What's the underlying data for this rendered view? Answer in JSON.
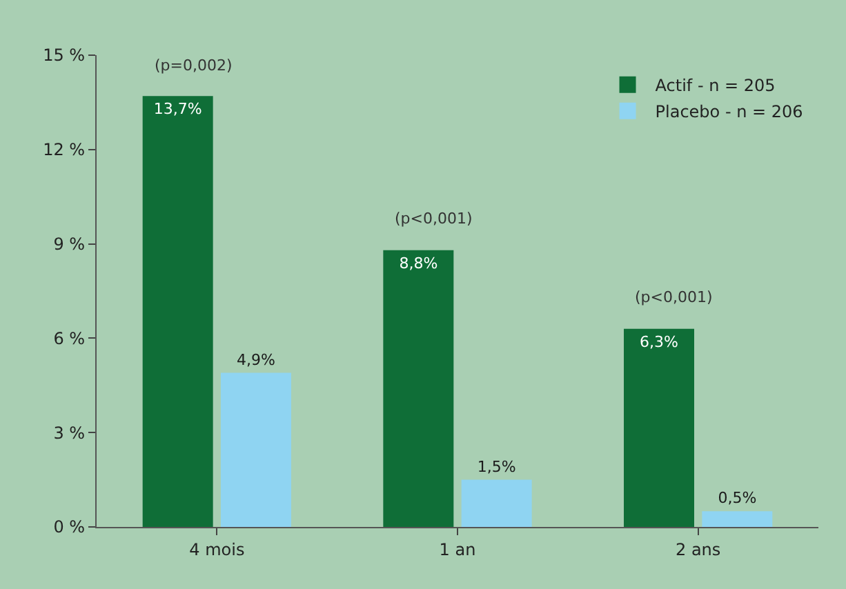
{
  "chart_data": {
    "type": "bar",
    "categories": [
      "4 mois",
      "1 an",
      "2 ans"
    ],
    "series": [
      {
        "name": "Actif - n = 205",
        "color": "#0f6e37",
        "values": [
          13.7,
          8.8,
          6.3
        ],
        "value_labels": [
          "13,7%",
          "8,8%",
          "6,3%"
        ]
      },
      {
        "name": "Placebo - n = 206",
        "color": "#8fd4f2",
        "values": [
          4.9,
          1.5,
          0.5
        ],
        "value_labels": [
          "4,9%",
          "1,5%",
          "0,5%"
        ]
      }
    ],
    "ylim": [
      0,
      15
    ],
    "yticks": [
      {
        "value": 0,
        "label": "0 %"
      },
      {
        "value": 3,
        "label": "3 %"
      },
      {
        "value": 6,
        "label": "6 %"
      },
      {
        "value": 9,
        "label": "9 %"
      },
      {
        "value": 12,
        "label": "12 %"
      },
      {
        "value": 15,
        "label": "15 %"
      }
    ],
    "annotations": [
      "(p=0,002)",
      "(p<0,001)",
      "(p<0,001)"
    ],
    "grid": false,
    "legend": "top right"
  }
}
